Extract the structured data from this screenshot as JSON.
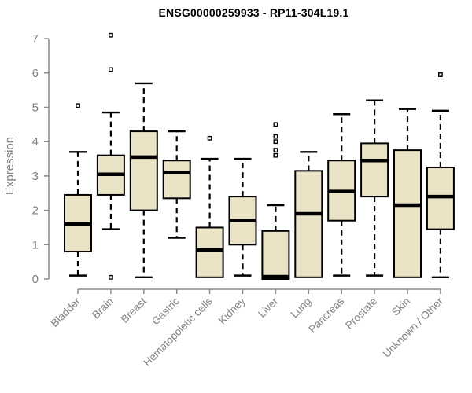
{
  "chart_data": {
    "type": "boxplot",
    "title": "ENSG00000259933 - RP11-304L19.1",
    "ylabel": "Expression",
    "xlabel": "",
    "ylim": [
      0,
      7
    ],
    "yticks": [
      0,
      1,
      2,
      3,
      4,
      5,
      6,
      7
    ],
    "grid": false,
    "legend": false,
    "categories": [
      "Bladder",
      "Brain",
      "Breast",
      "Gastric",
      "Hematopoietic cells",
      "Kidney",
      "Liver",
      "Lung",
      "Pancreas",
      "Prostate",
      "Skin",
      "Unknown / Other"
    ],
    "boxes": [
      {
        "category": "Bladder",
        "whisker_low": 0.1,
        "q1": 0.8,
        "median": 1.6,
        "q3": 2.45,
        "whisker_high": 3.7,
        "outliers": [
          5.05
        ]
      },
      {
        "category": "Brain",
        "whisker_low": 1.45,
        "q1": 2.45,
        "median": 3.05,
        "q3": 3.6,
        "whisker_high": 4.85,
        "outliers": [
          7.1,
          6.1,
          0.05
        ]
      },
      {
        "category": "Breast",
        "whisker_low": 0.05,
        "q1": 2.0,
        "median": 3.55,
        "q3": 4.3,
        "whisker_high": 5.7,
        "outliers": []
      },
      {
        "category": "Gastric",
        "whisker_low": 1.2,
        "q1": 2.35,
        "median": 3.1,
        "q3": 3.45,
        "whisker_high": 4.3,
        "outliers": []
      },
      {
        "category": "Hematopoietic cells",
        "whisker_low": 0.05,
        "q1": 0.05,
        "median": 0.85,
        "q3": 1.5,
        "whisker_high": 3.5,
        "outliers": [
          4.1
        ]
      },
      {
        "category": "Kidney",
        "whisker_low": 0.1,
        "q1": 1.0,
        "median": 1.7,
        "q3": 2.4,
        "whisker_high": 3.5,
        "outliers": []
      },
      {
        "category": "Liver",
        "whisker_low": 0.0,
        "q1": 0.0,
        "median": 0.07,
        "q3": 1.4,
        "whisker_high": 2.15,
        "outliers": [
          4.5,
          4.15,
          4.0,
          3.75,
          3.6
        ]
      },
      {
        "category": "Lung",
        "whisker_low": 0.05,
        "q1": 0.05,
        "median": 1.9,
        "q3": 3.15,
        "whisker_high": 3.7,
        "outliers": []
      },
      {
        "category": "Pancreas",
        "whisker_low": 0.1,
        "q1": 1.7,
        "median": 2.55,
        "q3": 3.45,
        "whisker_high": 4.8,
        "outliers": []
      },
      {
        "category": "Prostate",
        "whisker_low": 0.1,
        "q1": 2.4,
        "median": 3.45,
        "q3": 3.95,
        "whisker_high": 5.2,
        "outliers": []
      },
      {
        "category": "Skin",
        "whisker_low": 0.05,
        "q1": 0.05,
        "median": 2.15,
        "q3": 3.75,
        "whisker_high": 4.95,
        "outliers": []
      },
      {
        "category": "Unknown / Other",
        "whisker_low": 0.05,
        "q1": 1.45,
        "median": 2.4,
        "q3": 3.25,
        "whisker_high": 4.9,
        "outliers": [
          5.95
        ]
      }
    ],
    "style": {
      "background": "#FFFFFF",
      "box_fill": "#EBE3C6",
      "box_border": "#000000",
      "median_color": "#000000",
      "whisker_color": "#000000",
      "whisker_style": "dashed",
      "outlier_shape": "open-square",
      "axis_color": "#888888",
      "tick_label_color": "#808080",
      "title_color": "#000000"
    }
  }
}
